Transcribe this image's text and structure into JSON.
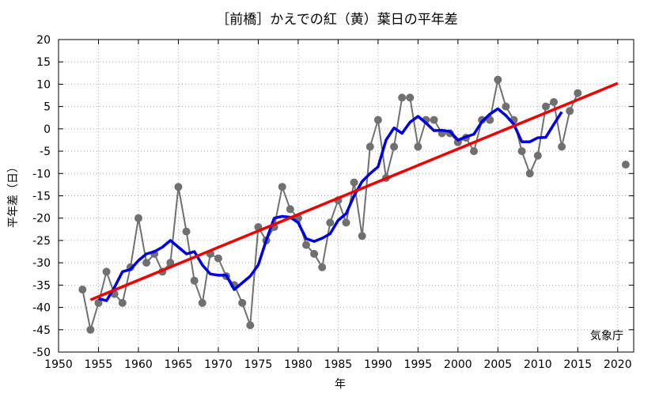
{
  "chart_data": {
    "type": "line",
    "title": "［前橋］かえでの紅（黄）葉日の平年差",
    "xlabel": "年",
    "ylabel": "平年差（日）",
    "source_label": "気象庁",
    "xlim": [
      1950,
      2022
    ],
    "ylim": [
      -50,
      20
    ],
    "x_ticks": [
      1950,
      1955,
      1960,
      1965,
      1970,
      1975,
      1980,
      1985,
      1990,
      1995,
      2000,
      2005,
      2010,
      2015,
      2020
    ],
    "y_ticks": [
      -50,
      -45,
      -40,
      -35,
      -30,
      -25,
      -20,
      -15,
      -10,
      -5,
      0,
      5,
      10,
      15,
      20
    ],
    "grid": true,
    "legend": "none",
    "series": [
      {
        "style": "gray line with markers",
        "color": "#707070",
        "marker_color": "#707070",
        "x": [
          1953,
          1954,
          1955,
          1956,
          1957,
          1958,
          1959,
          1960,
          1961,
          1962,
          1963,
          1964,
          1965,
          1966,
          1967,
          1968,
          1969,
          1970,
          1971,
          1972,
          1973,
          1974,
          1975,
          1976,
          1977,
          1978,
          1979,
          1980,
          1981,
          1982,
          1983,
          1984,
          1985,
          1986,
          1987,
          1988,
          1989,
          1990,
          1991,
          1992,
          1993,
          1994,
          1995,
          1996,
          1997,
          1998,
          1999,
          2000,
          2001,
          2002,
          2003,
          2004,
          2005,
          2006,
          2007,
          2008,
          2009,
          2010,
          2011,
          2012,
          2013,
          2014,
          2015
        ],
        "values": [
          -36,
          -45,
          -39,
          -32,
          -37,
          -39,
          -31,
          -20,
          -30,
          -28,
          -32,
          -30,
          -13,
          -23,
          -34,
          -39,
          -28,
          -29,
          -33,
          -35,
          -39,
          -44,
          -22,
          -25,
          -22,
          -13,
          -18,
          -20,
          -26,
          -28,
          -31,
          -21,
          -16,
          -21,
          -12,
          -24,
          -4,
          2,
          -11,
          -4,
          7,
          7,
          -4,
          2,
          2,
          -1,
          -1,
          -3,
          -2,
          -5,
          2,
          2,
          11,
          5,
          2,
          -5,
          -10,
          -6,
          5,
          6,
          -4,
          4,
          8
        ]
      },
      {
        "style": "isolated point",
        "color": "#707070",
        "x": [
          2021
        ],
        "values": [
          -8
        ]
      },
      {
        "style": "blue running mean",
        "color": "#0000e0",
        "x": [
          1955,
          1956,
          1957,
          1958,
          1959,
          1960,
          1961,
          1962,
          1963,
          1964,
          1965,
          1966,
          1967,
          1968,
          1969,
          1970,
          1971,
          1972,
          1973,
          1974,
          1975,
          1976,
          1977,
          1978,
          1979,
          1980,
          1981,
          1982,
          1983,
          1984,
          1985,
          1986,
          1987,
          1988,
          1989,
          1990,
          1991,
          1992,
          1993,
          1994,
          1995,
          1996,
          1997,
          1998,
          1999,
          2000,
          2001,
          2002,
          2003,
          2004,
          2005,
          2006,
          2007,
          2008,
          2009,
          2010,
          2011,
          2012,
          2013
        ],
        "values": [
          -38,
          -38.5,
          -35.5,
          -32,
          -31.5,
          -29.5,
          -28,
          -27.5,
          -26.5,
          -25,
          -26.5,
          -28,
          -27.5,
          -30.5,
          -32.5,
          -32.8,
          -32.8,
          -36,
          -34.5,
          -33,
          -30.5,
          -25,
          -20,
          -19.6,
          -19.8,
          -21,
          -24.6,
          -25.2,
          -24.5,
          -23.5,
          -20.5,
          -19,
          -15,
          -11.8,
          -10,
          -8.5,
          -2.5,
          0.2,
          -1,
          1.5,
          2.8,
          1.3,
          -0.4,
          -0.3,
          -0.6,
          -2.5,
          -1.8,
          -1.2,
          1.6,
          3.3,
          4.5,
          3,
          1,
          -2.9,
          -2.9,
          -2,
          -1.9,
          1,
          3.8
        ]
      },
      {
        "style": "red trend line",
        "color": "#ee0000",
        "x": [
          1954,
          2020
        ],
        "values": [
          -38.3,
          10.2
        ]
      }
    ]
  }
}
